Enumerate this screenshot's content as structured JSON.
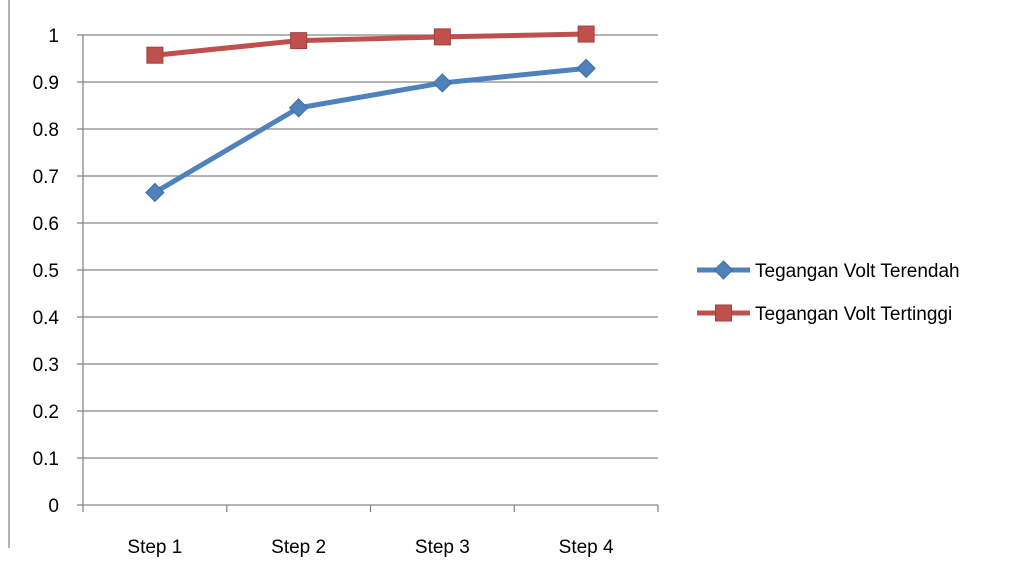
{
  "chart_data": {
    "type": "line",
    "categories": [
      "Step 1",
      "Step 2",
      "Step 3",
      "Step 4"
    ],
    "series": [
      {
        "name": "Tegangan Volt Terendah",
        "values": [
          0.665,
          0.845,
          0.898,
          0.929
        ],
        "color": "#4F81BD",
        "marker": "diamond"
      },
      {
        "name": "Tegangan Volt Tertinggi",
        "values": [
          0.957,
          0.988,
          0.996,
          1.002
        ],
        "color": "#C0504D",
        "marker": "square"
      }
    ],
    "ylim": [
      0,
      1
    ],
    "yticks": [
      "0",
      "0.1",
      "0.2",
      "0.3",
      "0.4",
      "0.5",
      "0.6",
      "0.7",
      "0.8",
      "0.9",
      "1"
    ],
    "grid": true,
    "legend_position": "right"
  }
}
